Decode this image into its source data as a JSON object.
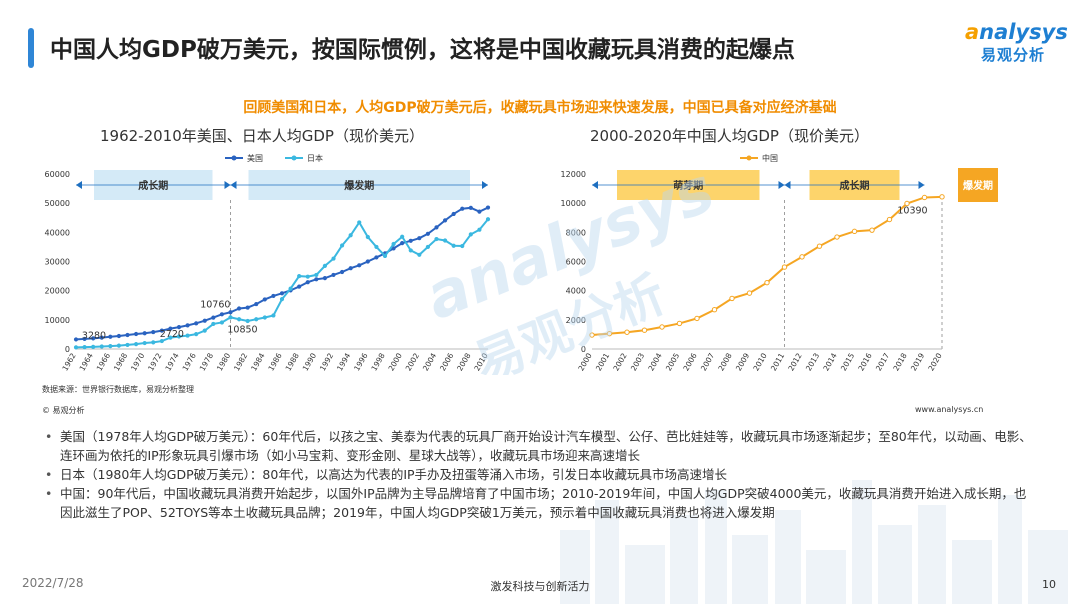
{
  "header": {
    "title": "中国人均GDP破万美元，按国际惯例，这将是中国收藏玩具消费的起爆点",
    "subtitle": "回顾美国和日本，人均GDP破万美元后，收藏玩具市场迎来快速发展，中国已具备对应经济基础"
  },
  "logo": {
    "en_prefix": "a",
    "en_rest": "nalysys",
    "cn": "易观分析"
  },
  "watermark": {
    "en": "analysys",
    "cn": "易观分析"
  },
  "colors": {
    "us": "#2a63c0",
    "japan": "#3bb8e0",
    "china": "#f5a623",
    "band_fill": "#d4eaf7",
    "band_fill_cn": "#fdd46b",
    "burst": "#f5a623"
  },
  "chart_data": [
    {
      "type": "line",
      "title": "1962-2010年美国、日本人均GDP（现价美元）",
      "x": [
        1962,
        1963,
        1964,
        1965,
        1966,
        1967,
        1968,
        1969,
        1970,
        1971,
        1972,
        1973,
        1974,
        1975,
        1976,
        1977,
        1978,
        1979,
        1980,
        1981,
        1982,
        1983,
        1984,
        1985,
        1986,
        1987,
        1988,
        1989,
        1990,
        1991,
        1992,
        1993,
        1994,
        1995,
        1996,
        1997,
        1998,
        1999,
        2000,
        2001,
        2002,
        2003,
        2004,
        2005,
        2006,
        2007,
        2008,
        2009,
        2010
      ],
      "x_tick_labels": [
        "1962",
        "1964",
        "1966",
        "1968",
        "1970",
        "1972",
        "1974",
        "1976",
        "1978",
        "1980",
        "1982",
        "1984",
        "1986",
        "1988",
        "1990",
        "1992",
        "1994",
        "1996",
        "1998",
        "2000",
        "2002",
        "2004",
        "2006",
        "2008",
        "2010"
      ],
      "y_ticks": [
        0,
        10000,
        20000,
        30000,
        40000,
        50000,
        60000
      ],
      "ylim": [
        0,
        60000
      ],
      "series": [
        {
          "name": "美国",
          "values": [
            3280,
            3450,
            3650,
            3900,
            4200,
            4450,
            4800,
            5150,
            5400,
            5800,
            6300,
            7000,
            7500,
            8100,
            8800,
            9700,
            10760,
            11900,
            12600,
            13900,
            14200,
            15400,
            17000,
            18200,
            19100,
            20100,
            21400,
            22900,
            23900,
            24300,
            25400,
            26400,
            27700,
            28700,
            30000,
            31400,
            32800,
            34500,
            36300,
            37100,
            38000,
            39500,
            41700,
            44100,
            46300,
            48100,
            48400,
            47100,
            48500
          ]
        },
        {
          "name": "日本",
          "values": [
            560,
            640,
            730,
            850,
            990,
            1160,
            1400,
            1670,
            2040,
            2270,
            2720,
            3900,
            4300,
            4600,
            5100,
            6300,
            8600,
            9100,
            10850,
            10200,
            9600,
            10200,
            10800,
            11500,
            17100,
            20700,
            25000,
            24800,
            25400,
            28500,
            31000,
            35500,
            39000,
            43400,
            38400,
            35000,
            31900,
            36000,
            38500,
            33800,
            32300,
            35000,
            37700,
            37200,
            35400,
            35300,
            39300,
            40900,
            44500
          ]
        }
      ],
      "data_labels": [
        {
          "series": "美国",
          "x": 1962,
          "text": "3280"
        },
        {
          "series": "日本",
          "x": 1972,
          "text": "2720"
        },
        {
          "series": "美国",
          "x": 1978,
          "text": "10760"
        },
        {
          "series": "日本",
          "x": 1980,
          "text": "10850"
        }
      ],
      "periods": [
        {
          "label": "成长期",
          "from": 1962,
          "to": 1980
        },
        {
          "label": "爆发期",
          "from": 1980,
          "to": 2010
        }
      ],
      "legend_position": "top-center",
      "grid": false
    },
    {
      "type": "line",
      "title": "2000-2020年中国人均GDP（现价美元）",
      "x": [
        2000,
        2001,
        2002,
        2003,
        2004,
        2005,
        2006,
        2007,
        2008,
        2009,
        2010,
        2011,
        2012,
        2013,
        2014,
        2015,
        2016,
        2017,
        2018,
        2019,
        2020
      ],
      "x_tick_labels": [
        "2000",
        "2001",
        "2002",
        "2003",
        "2004",
        "2005",
        "2006",
        "2007",
        "2008",
        "2009",
        "2010",
        "2011",
        "2012",
        "2013",
        "2014",
        "2015",
        "2016",
        "2017",
        "2018",
        "2019",
        "2020"
      ],
      "y_ticks": [
        0,
        2000,
        4000,
        6000,
        8000,
        10000,
        12000
      ],
      "ylim": [
        0,
        12000
      ],
      "series": [
        {
          "name": "中国",
          "values": [
            959,
            1053,
            1149,
            1289,
            1509,
            1753,
            2099,
            2694,
            3468,
            3832,
            4550,
            5618,
            6317,
            7051,
            7679,
            8067,
            8148,
            8879,
            9977,
            10390,
            10435
          ]
        }
      ],
      "data_labels": [
        {
          "series": "中国",
          "x": 2019,
          "text": "10390"
        }
      ],
      "periods": [
        {
          "label": "萌芽期",
          "from": 2000,
          "to": 2011
        },
        {
          "label": "成长期",
          "from": 2011,
          "to": 2019
        },
        {
          "label": "爆发期",
          "from": 2019,
          "to": 2020
        }
      ],
      "legend_position": "top-center",
      "grid": false
    }
  ],
  "notes": {
    "source": "数据来源：世界银行数据库，易观分析整理",
    "copyright": "© 易观分析",
    "website": "www.analysys.cn"
  },
  "bullets": [
    "美国（1978年人均GDP破万美元）：60年代后，以孩之宝、美泰为代表的玩具厂商开始设计汽车模型、公仔、芭比娃娃等，收藏玩具市场逐渐起步；至80年代，以动画、电影、连环画为依托的IP形象玩具引爆市场（如小马宝莉、变形金刚、星球大战等），收藏玩具市场迎来高速增长",
    "日本（1980年人均GDP破万美元）：80年代，以高达为代表的IP手办及扭蛋等涌入市场，引发日本收藏玩具市场高速增长",
    "中国：90年代后，中国收藏玩具消费开始起步，以国外IP品牌为主导品牌培育了中国市场；2010-2019年间，中国人均GDP突破4000美元，收藏玩具消费开始进入成长期，也因此滋生了POP、52TOYS等本土收藏玩具品牌；2019年，中国人均GDP突破1万美元，预示着中国收藏玩具消费也将进入爆发期"
  ],
  "footer": {
    "date": "2022/7/28",
    "tagline": "激发科技与创新活力",
    "page": "10"
  }
}
